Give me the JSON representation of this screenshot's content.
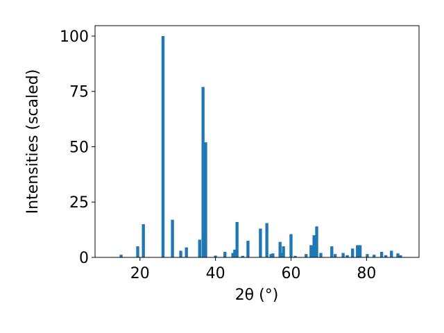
{
  "chart_data": {
    "type": "bar",
    "x_label": "2θ (°)",
    "y_label": "Intensities (scaled)",
    "color": "#1f77b4",
    "x": [
      15.0,
      19.4,
      20.9,
      26.1,
      28.6,
      30.8,
      32.3,
      35.8,
      36.7,
      37.4,
      40.0,
      42.5,
      44.6,
      45.1,
      45.7,
      47.2,
      48.6,
      51.9,
      53.6,
      54.7,
      55.2,
      57.1,
      57.6,
      58.0,
      60.0,
      61.1,
      64.0,
      65.3,
      66.1,
      66.8,
      67.9,
      70.8,
      71.7,
      73.8,
      74.9,
      76.3,
      77.6,
      78.3,
      80.2,
      82.0,
      84.0,
      85.1,
      86.6,
      88.3,
      89.0
    ],
    "values": [
      1.2,
      5,
      15,
      100,
      17,
      3,
      4.5,
      8,
      77,
      52,
      0.8,
      2.5,
      2,
      3.5,
      16,
      0.7,
      7.5,
      13,
      15.5,
      1.5,
      1.8,
      7,
      2,
      5,
      10.5,
      0.7,
      1.5,
      5.5,
      10,
      14,
      2,
      5,
      1.5,
      2,
      1,
      4,
      5.5,
      5.5,
      1.5,
      1.2,
      2.5,
      1,
      3,
      1.8,
      1
    ],
    "xlim": [
      8.1,
      93.9
    ],
    "ylim": [
      0,
      104.7
    ],
    "xticks": [
      20,
      40,
      60,
      80
    ],
    "yticks": [
      0,
      25,
      50,
      75,
      100
    ],
    "grid": false
  }
}
